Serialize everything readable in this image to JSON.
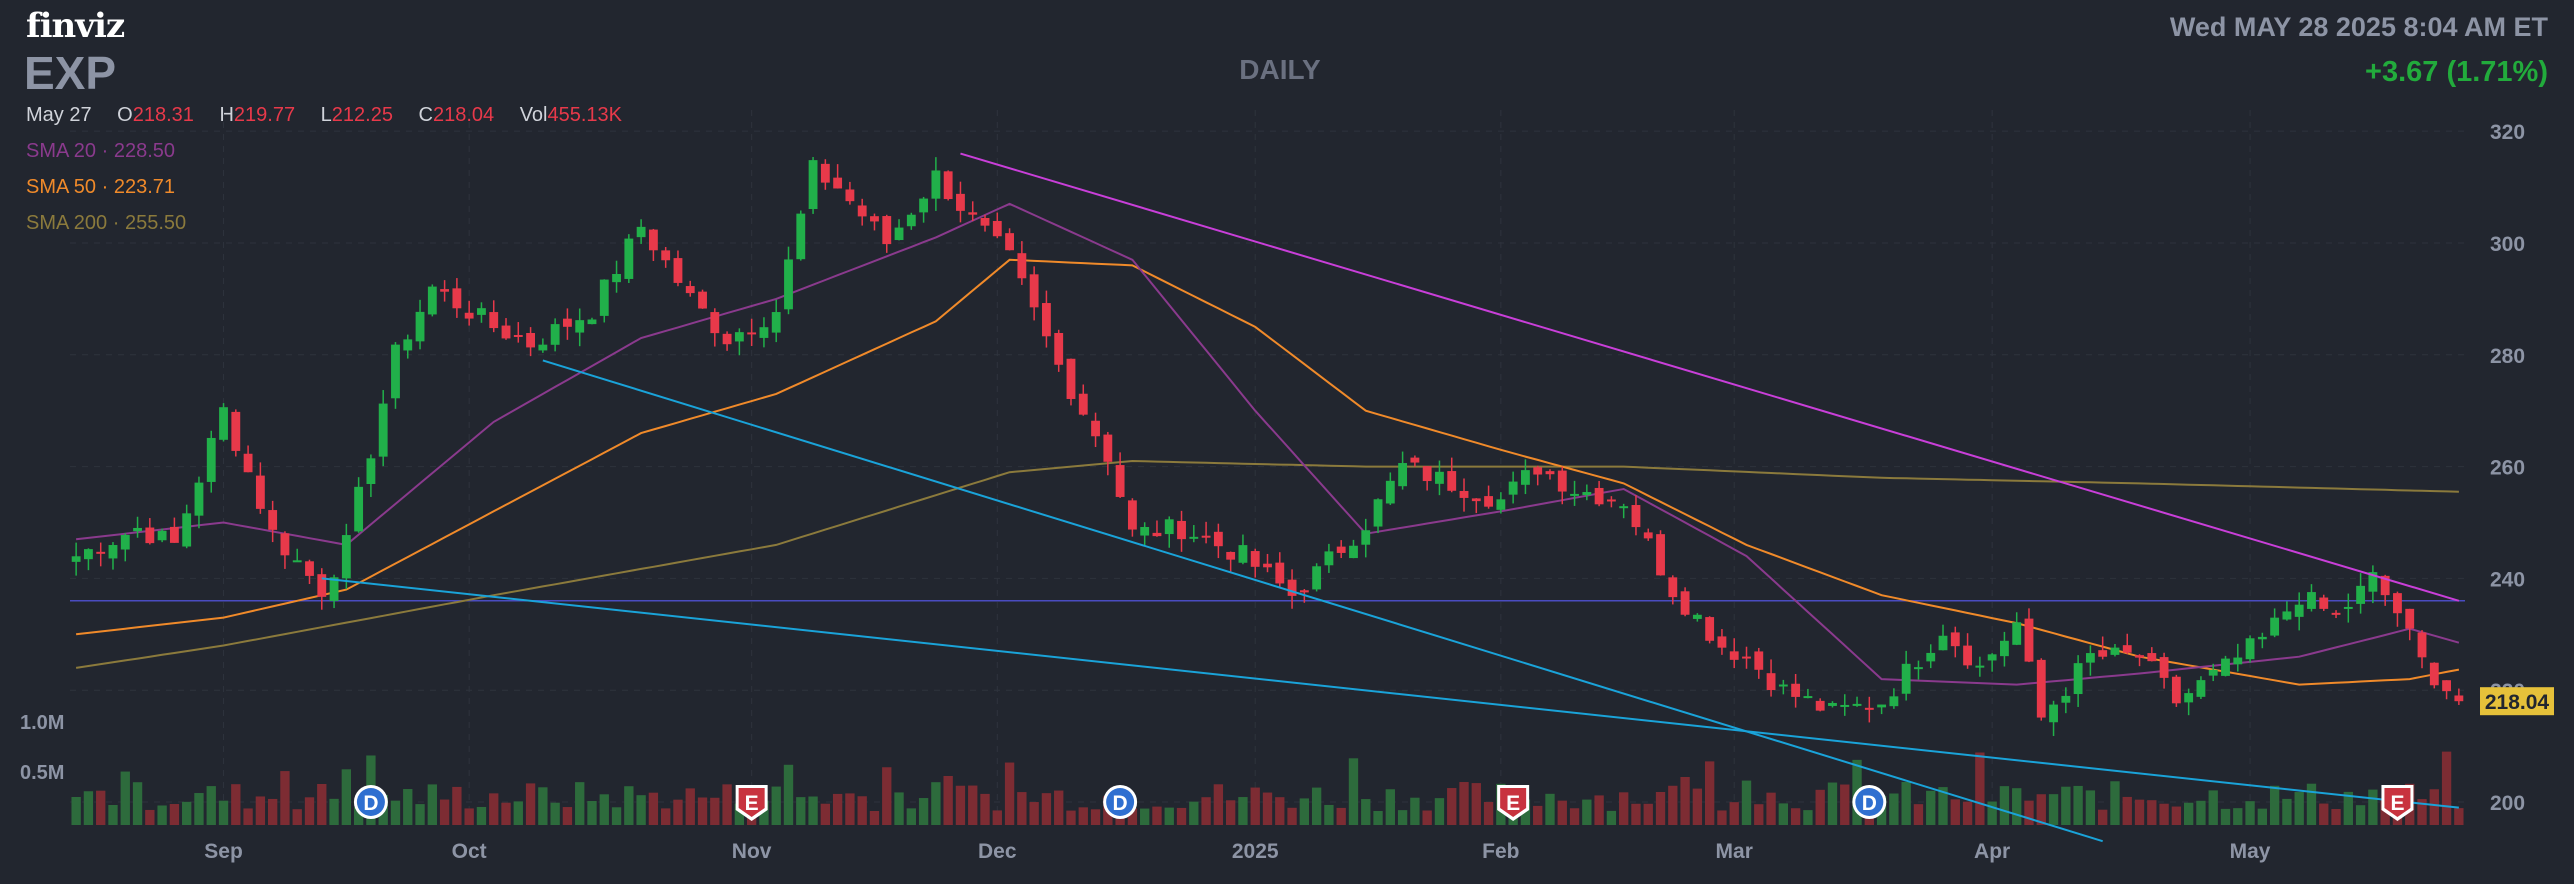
{
  "header": {
    "logo": "finviz",
    "ticker": "EXP",
    "period": "DAILY",
    "datetime": "Wed MAY 28 2025 8:04 AM ET",
    "change": "+3.67 (1.71%)"
  },
  "ohlc": {
    "date": "May 27",
    "o_label": "O",
    "o": "218.31",
    "h_label": "H",
    "h": "219.77",
    "l_label": "L",
    "l": "212.25",
    "c_label": "C",
    "c": "218.04",
    "vol_label": "Vol",
    "vol": "455.13K"
  },
  "sma": [
    {
      "label": "SMA 20",
      "value": "228.50",
      "color": "#9b3f9e"
    },
    {
      "label": "SMA 50",
      "value": "223.71",
      "color": "#f08a2a"
    },
    {
      "label": "SMA 200",
      "value": "255.50",
      "color": "#8b7a3c"
    }
  ],
  "volume_labels": [
    "1.0M",
    "0.5M"
  ],
  "colors": {
    "up": "#21b04a",
    "down": "#e8394a",
    "up_vol": "#2d6b3c",
    "down_vol": "#7d2c33",
    "magenta_trend": "#c93fd9",
    "blue_trend": "#1aa3d9",
    "hline": "#4a4cc0",
    "price_tag_bg": "#e6c13a",
    "event_d": "#2f6fd0",
    "event_e": "#c8333f"
  },
  "chart_data": {
    "type": "candlestick",
    "ylim": [
      195,
      322
    ],
    "y_ticks": [
      "320",
      "300",
      "280",
      "260",
      "240",
      "220",
      "200"
    ],
    "x_labels": [
      "Sep",
      "Oct",
      "Nov",
      "Dec",
      "2025",
      "Feb",
      "Mar",
      "Apr",
      "May"
    ],
    "last_price": "218.04",
    "anchors": [
      [
        "2024-08-15",
        244
      ],
      [
        "2024-08-22",
        249
      ],
      [
        "2024-08-27",
        246
      ],
      [
        "2024-09-03",
        270
      ],
      [
        "2024-09-09",
        248
      ],
      [
        "2024-09-13",
        238
      ],
      [
        "2024-09-17",
        246
      ],
      [
        "2024-09-23",
        280
      ],
      [
        "2024-09-26",
        292
      ],
      [
        "2024-10-03",
        285
      ],
      [
        "2024-10-08",
        282
      ],
      [
        "2024-10-15",
        288
      ],
      [
        "2024-10-21",
        303
      ],
      [
        "2024-10-25",
        290
      ],
      [
        "2024-10-30",
        283
      ],
      [
        "2024-11-05",
        288
      ],
      [
        "2024-11-08",
        313
      ],
      [
        "2024-11-12",
        310
      ],
      [
        "2024-11-18",
        300
      ],
      [
        "2024-11-22",
        312
      ],
      [
        "2024-11-27",
        304
      ],
      [
        "2024-12-03",
        297
      ],
      [
        "2024-12-09",
        278
      ],
      [
        "2024-12-13",
        262
      ],
      [
        "2024-12-17",
        248
      ],
      [
        "2024-12-23",
        249
      ],
      [
        "2024-12-31",
        244
      ],
      [
        "2025-01-07",
        237
      ],
      [
        "2025-01-10",
        241
      ],
      [
        "2025-01-16",
        250
      ],
      [
        "2025-01-22",
        260
      ],
      [
        "2025-01-28",
        257
      ],
      [
        "2025-02-03",
        254
      ],
      [
        "2025-02-06",
        260
      ],
      [
        "2025-02-11",
        256
      ],
      [
        "2025-02-18",
        254
      ],
      [
        "2025-02-24",
        238
      ],
      [
        "2025-02-28",
        228
      ],
      [
        "2025-03-04",
        226
      ],
      [
        "2025-03-07",
        220
      ],
      [
        "2025-03-13",
        216
      ],
      [
        "2025-03-19",
        218
      ],
      [
        "2025-03-26",
        231
      ],
      [
        "2025-03-31",
        224
      ],
      [
        "2025-04-03",
        232
      ],
      [
        "2025-04-07",
        215
      ],
      [
        "2025-04-11",
        226
      ],
      [
        "2025-04-17",
        226
      ],
      [
        "2025-04-23",
        218
      ],
      [
        "2025-04-29",
        224
      ],
      [
        "2025-05-02",
        229
      ],
      [
        "2025-05-07",
        237
      ],
      [
        "2025-05-12",
        233
      ],
      [
        "2025-05-15",
        240
      ],
      [
        "2025-05-19",
        234
      ],
      [
        "2025-05-21",
        225
      ],
      [
        "2025-05-27",
        218.04
      ]
    ],
    "sma20": [
      [
        "2024-08-15",
        247
      ],
      [
        "2024-09-03",
        250
      ],
      [
        "2024-09-17",
        246
      ],
      [
        "2024-10-03",
        268
      ],
      [
        "2024-10-21",
        283
      ],
      [
        "2024-11-05",
        290
      ],
      [
        "2024-11-22",
        301
      ],
      [
        "2024-12-03",
        307
      ],
      [
        "2024-12-17",
        297
      ],
      [
        "2025-01-02",
        270
      ],
      [
        "2025-01-16",
        248
      ],
      [
        "2025-02-03",
        252
      ],
      [
        "2025-02-18",
        256
      ],
      [
        "2025-03-04",
        244
      ],
      [
        "2025-03-19",
        222
      ],
      [
        "2025-04-03",
        221
      ],
      [
        "2025-04-17",
        223
      ],
      [
        "2025-05-07",
        226
      ],
      [
        "2025-05-20",
        231
      ],
      [
        "2025-05-27",
        228.5
      ]
    ],
    "sma50": [
      [
        "2024-08-15",
        230
      ],
      [
        "2024-09-03",
        233
      ],
      [
        "2024-09-17",
        238
      ],
      [
        "2024-10-03",
        252
      ],
      [
        "2024-10-21",
        266
      ],
      [
        "2024-11-05",
        273
      ],
      [
        "2024-11-22",
        286
      ],
      [
        "2024-12-03",
        297
      ],
      [
        "2024-12-17",
        296
      ],
      [
        "2025-01-02",
        285
      ],
      [
        "2025-01-16",
        270
      ],
      [
        "2025-02-03",
        263
      ],
      [
        "2025-02-18",
        257
      ],
      [
        "2025-03-04",
        246
      ],
      [
        "2025-03-19",
        237
      ],
      [
        "2025-04-03",
        232
      ],
      [
        "2025-04-17",
        226
      ],
      [
        "2025-05-07",
        221
      ],
      [
        "2025-05-20",
        222
      ],
      [
        "2025-05-27",
        223.7
      ]
    ],
    "sma200": [
      [
        "2024-08-15",
        224
      ],
      [
        "2024-09-03",
        228
      ],
      [
        "2024-10-03",
        237
      ],
      [
        "2024-11-05",
        246
      ],
      [
        "2024-12-03",
        259
      ],
      [
        "2024-12-17",
        261
      ],
      [
        "2025-01-16",
        260
      ],
      [
        "2025-02-18",
        260
      ],
      [
        "2025-03-19",
        258
      ],
      [
        "2025-04-17",
        257
      ],
      [
        "2025-05-27",
        255.5
      ]
    ],
    "trendlines": [
      {
        "color": "magenta",
        "from": [
          "2024-11-26",
          316
        ],
        "to": [
          "2025-05-27",
          236
        ]
      },
      {
        "color": "blue",
        "from": [
          "2024-10-09",
          279
        ],
        "to": [
          "2025-04-14",
          193
        ]
      },
      {
        "color": "blue",
        "from": [
          "2024-09-13",
          240
        ],
        "to": [
          "2025-05-27",
          199
        ]
      }
    ],
    "hline": 236,
    "events": [
      {
        "date": "2024-09-19",
        "type": "D"
      },
      {
        "date": "2024-11-01",
        "type": "E"
      },
      {
        "date": "2024-12-16",
        "type": "D"
      },
      {
        "date": "2025-02-04",
        "type": "E"
      },
      {
        "date": "2025-03-18",
        "type": "D"
      },
      {
        "date": "2025-05-19",
        "type": "E"
      }
    ]
  }
}
